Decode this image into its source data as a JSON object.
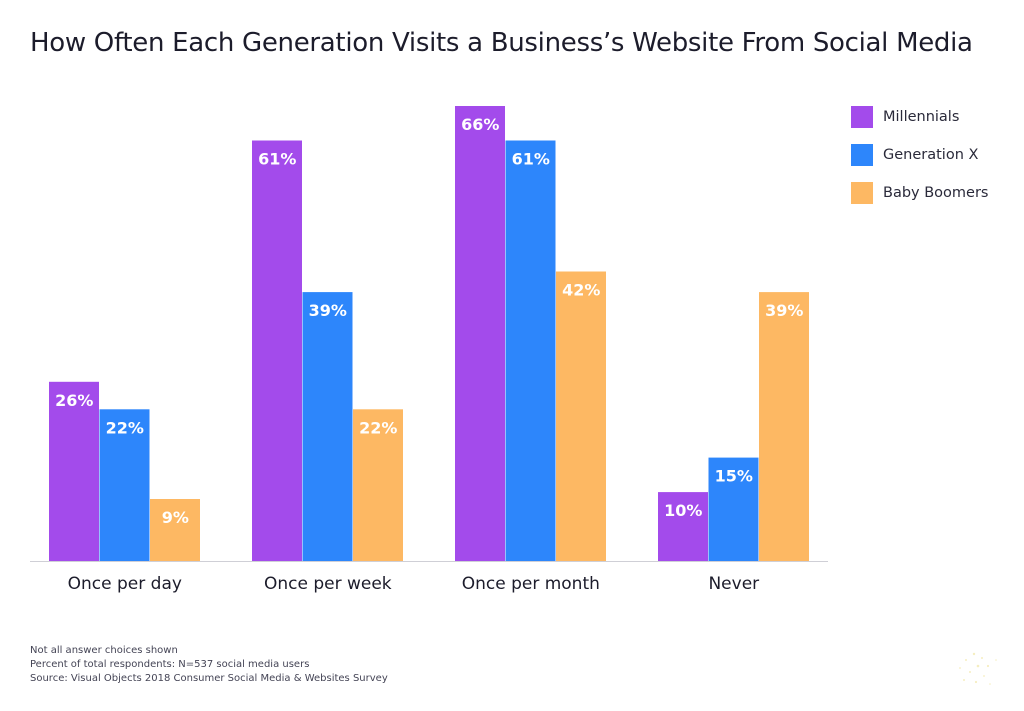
{
  "title": "How Often Each Generation Visits a Business’s Website From Social Media",
  "chart_data": {
    "type": "bar",
    "title": "How Often Each Generation Visits a Business’s Website From Social Media",
    "categories": [
      "Once per day",
      "Once per week",
      "Once per month",
      "Never"
    ],
    "series": [
      {
        "name": "Millennials",
        "values": [
          26,
          61,
          66,
          10
        ],
        "color": "#A34BEB"
      },
      {
        "name": "Generation X",
        "values": [
          22,
          39,
          61,
          15
        ],
        "color": "#2D86FB"
      },
      {
        "name": "Baby Boomers",
        "values": [
          9,
          22,
          42,
          39
        ],
        "color": "#FDB863"
      }
    ],
    "value_suffix": "%",
    "ylim": [
      0,
      66
    ],
    "grid": false,
    "legend_position": "top-right"
  },
  "footnotes": [
    "Not all answer choices shown",
    "Percent of total respondents: N=537 social media users",
    "Source: Visual Objects 2018 Consumer Social Media & Websites Survey"
  ]
}
